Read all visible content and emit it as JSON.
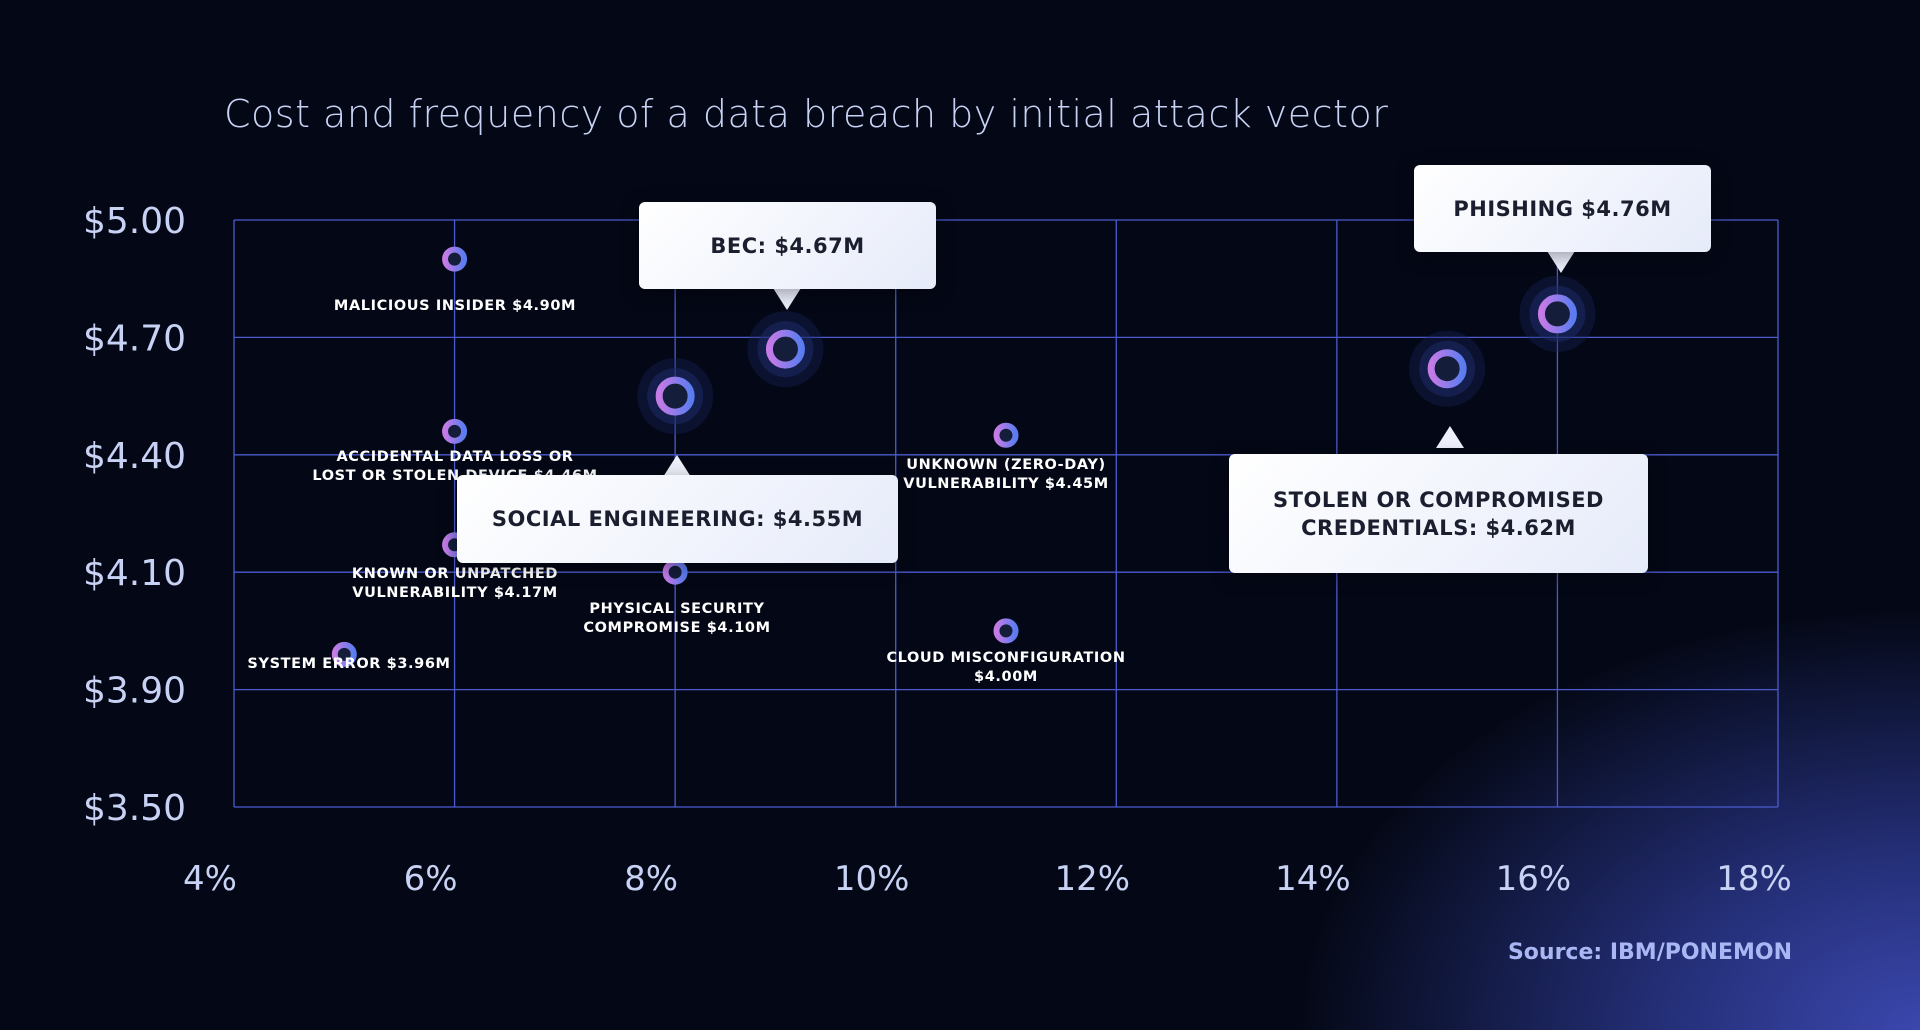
{
  "chart_data": {
    "type": "scatter",
    "title": "Cost and frequency of a data breach by initial attack vector",
    "xlabel": "",
    "ylabel": "",
    "x_ticks": [
      "4%",
      "6%",
      "8%",
      "10%",
      "12%",
      "14%",
      "16%",
      "18%"
    ],
    "x_tick_values": [
      4,
      6,
      8,
      10,
      12,
      14,
      16,
      18
    ],
    "y_ticks": [
      "$5.00",
      "$4.70",
      "$4.40",
      "$4.10",
      "$3.90",
      "$3.50"
    ],
    "y_tick_values": [
      5.0,
      4.7,
      4.4,
      4.1,
      3.9,
      3.5
    ],
    "xlim": [
      4,
      18
    ],
    "ylim": [
      3.5,
      5.0
    ],
    "grid": true,
    "points": [
      {
        "name": "Malicious insider",
        "x": 6,
        "y": 4.9,
        "label": [
          "MALICIOUS INSIDER $4.90M"
        ],
        "highlight": false
      },
      {
        "name": "Accidental data loss or lost or stolen device",
        "x": 6,
        "y": 4.46,
        "label": [
          "ACCIDENTAL DATA LOSS OR",
          "LOST OR STOLEN DEVICE $4.46M"
        ],
        "highlight": false
      },
      {
        "name": "Known or unpatched vulnerability",
        "x": 6,
        "y": 4.17,
        "label": [
          "KNOWN OR UNPATCHED",
          "VULNERABILITY $4.17M"
        ],
        "highlight": false
      },
      {
        "name": "System error",
        "x": 5,
        "y": 3.96,
        "label": [
          "SYSTEM ERROR $3.96M"
        ],
        "highlight": false
      },
      {
        "name": "Physical security compromise",
        "x": 8,
        "y": 4.1,
        "label": [
          "PHYSICAL SECURITY",
          "COMPROMISE $4.10M"
        ],
        "highlight": false
      },
      {
        "name": "Unknown (zero-day) vulnerability",
        "x": 11,
        "y": 4.45,
        "label": [
          "UNKNOWN (ZERO-DAY)",
          "VULNERABILITY $4.45M"
        ],
        "highlight": false
      },
      {
        "name": "Cloud misconfiguration",
        "x": 11,
        "y": 4.0,
        "label": [
          "CLOUD MISCONFIGURATION",
          "$4.00M"
        ],
        "highlight": false
      },
      {
        "name": "Social engineering",
        "x": 8,
        "y": 4.55,
        "label": [
          "SOCIAL ENGINEERING: $4.55M"
        ],
        "highlight": true
      },
      {
        "name": "BEC",
        "x": 9,
        "y": 4.67,
        "label": [
          "BEC: $4.67M"
        ],
        "highlight": true
      },
      {
        "name": "Stolen or compromised credentials",
        "x": 15,
        "y": 4.62,
        "label": [
          "STOLEN OR COMPROMISED",
          "CREDENTIALS: $4.62M"
        ],
        "highlight": true
      },
      {
        "name": "Phishing",
        "x": 16,
        "y": 4.76,
        "label": [
          "PHISHING $4.76M"
        ],
        "highlight": true
      }
    ],
    "source": "Source: IBM/PONEMON"
  },
  "colors": {
    "background": "#040816",
    "grid": "#4a5bd0",
    "point_ring_start": "#c67be6",
    "point_ring_end": "#5a7cf0",
    "point_center": "#141d3a",
    "callout_bg": "#f2f4fc",
    "callout_text": "#1a1e2e"
  }
}
